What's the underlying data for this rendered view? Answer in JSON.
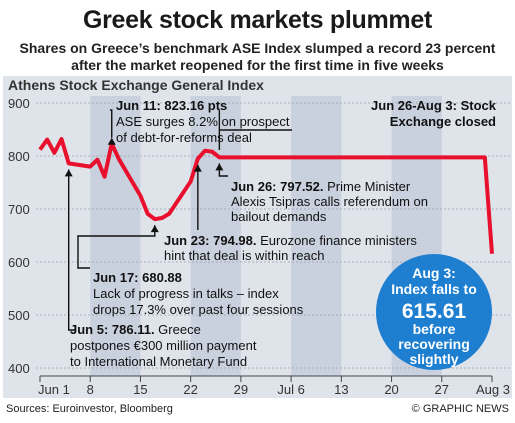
{
  "header": {
    "title": "Greek stock markets plummet",
    "subtitle_1": "Shares on Greece’s benchmark ASE Index slumped a record 23 percent",
    "subtitle_2": "after the market reopened for the first time in five weeks"
  },
  "footer": {
    "sources": "Sources: Euroinvestor, Bloomberg",
    "credit": "© GRAPHIC NEWS"
  },
  "colors": {
    "line": "#e8102d",
    "band": "#c9d0de",
    "callout": "#1e7fd0",
    "grid": "#9aa3b0"
  },
  "chart_data": {
    "type": "line",
    "title": "Athens Stock Exchange General Index",
    "ylim": [
      400,
      900
    ],
    "y_ticks": [
      400,
      500,
      600,
      700,
      800,
      900
    ],
    "x_ticks": [
      "Jun 1",
      "8",
      "15",
      "22",
      "29",
      "Jul 6",
      "13",
      "20",
      "27",
      "Aug 3"
    ],
    "x_days_index_note_removed": null,
    "series": [
      {
        "values": [
          {
            "x": "2015-06-01",
            "y": 812
          },
          {
            "x": "2015-06-02",
            "y": 831
          },
          {
            "x": "2015-06-03",
            "y": 806
          },
          {
            "x": "2015-06-04",
            "y": 832
          },
          {
            "x": "2015-06-05",
            "y": 786.11
          },
          {
            "x": "2015-06-08",
            "y": 780
          },
          {
            "x": "2015-06-09",
            "y": 793
          },
          {
            "x": "2015-06-10",
            "y": 761
          },
          {
            "x": "2015-06-11",
            "y": 823.16
          },
          {
            "x": "2015-06-12",
            "y": 794
          },
          {
            "x": "2015-06-15",
            "y": 725
          },
          {
            "x": "2015-06-16",
            "y": 691
          },
          {
            "x": "2015-06-17",
            "y": 680.88
          },
          {
            "x": "2015-06-18",
            "y": 683
          },
          {
            "x": "2015-06-19",
            "y": 691
          },
          {
            "x": "2015-06-22",
            "y": 752
          },
          {
            "x": "2015-06-23",
            "y": 794.98
          },
          {
            "x": "2015-06-24",
            "y": 810
          },
          {
            "x": "2015-06-25",
            "y": 808
          },
          {
            "x": "2015-06-26",
            "y": 797.52
          },
          {
            "x": "2015-08-02",
            "y": 797.52
          },
          {
            "x": "2015-08-03",
            "y": 615.61
          }
        ]
      }
    ],
    "closure_period": "Jun 26-Aug 3: Stock Exchange closed",
    "annotations": [
      {
        "date": "Jun 11",
        "value": "823.16 pts",
        "text": [
          "ASE surges 8.2% on prospect",
          "of debt-for-reforms deal"
        ]
      },
      {
        "date": "Jun 26",
        "value": "797.52.",
        "text": [
          "Prime Minister",
          "Alexis Tsipras calls referendum on",
          "bailout demands"
        ]
      },
      {
        "date": "Jun 23",
        "value": "794.98.",
        "text": [
          "Eurozone finance ministers",
          "hint that deal is within reach"
        ]
      },
      {
        "date": "Jun 17",
        "value": "680.88",
        "text": [
          "Lack of progress in talks – index",
          "drops 17.3% over past four sessions"
        ]
      },
      {
        "date": "Jun 5",
        "value": "786.11.",
        "text": [
          "Greece",
          "postpones €300 million payment",
          "to International Monetary Fund"
        ]
      }
    ],
    "final_callout": {
      "line1": "Aug 3:",
      "line2": "Index falls to",
      "value": "615.61",
      "line3": "before",
      "line4": "recovering",
      "line5": "slightly"
    },
    "grid": true
  }
}
